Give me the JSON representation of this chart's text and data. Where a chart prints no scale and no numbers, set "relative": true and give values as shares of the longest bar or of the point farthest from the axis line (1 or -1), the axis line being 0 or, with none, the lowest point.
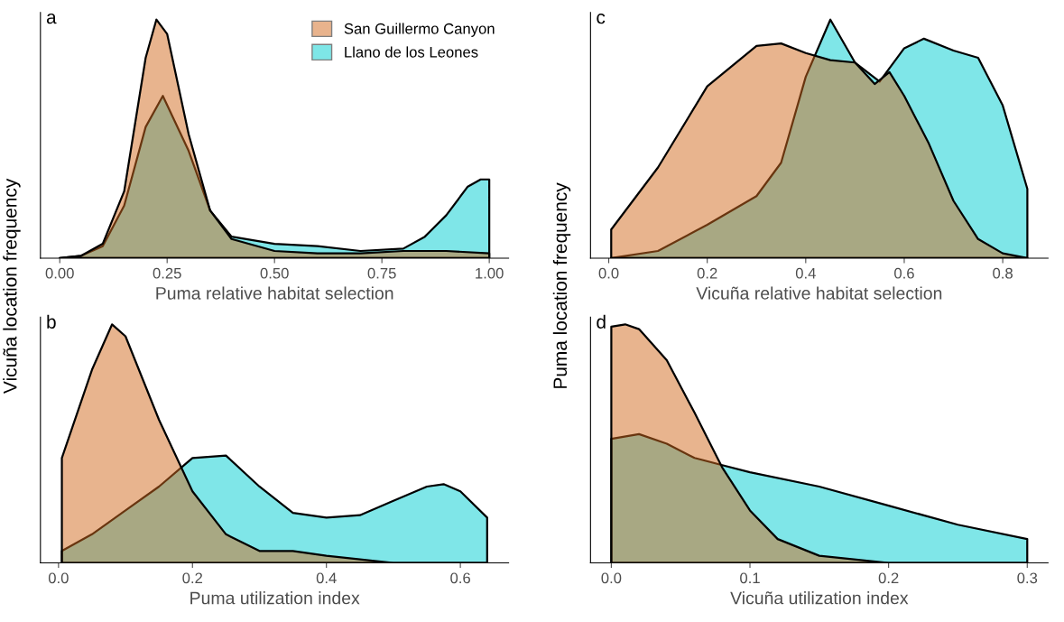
{
  "chart_data": [
    {
      "type": "area",
      "title": "a",
      "xlabel": "Puma relative habitat selection",
      "ylabel": "Vicuña location frequency",
      "relative": true,
      "legend": "top right",
      "grid": false,
      "xlim": [
        -0.045,
        1.045
      ],
      "xticks": [
        {
          "value": 0,
          "label": "0.00"
        },
        {
          "value": 0.25,
          "label": "0.25"
        },
        {
          "value": 0.5,
          "label": "0.50"
        },
        {
          "value": 0.75,
          "label": "0.75"
        },
        {
          "value": 1,
          "label": "1.00"
        }
      ],
      "series": [
        {
          "name": "San Guillermo Canyon",
          "color": "#d2691e",
          "x": [
            0,
            0.05,
            0.1,
            0.15,
            0.2,
            0.225,
            0.25,
            0.3,
            0.35,
            0.4,
            0.5,
            0.6,
            0.7,
            0.8,
            0.9,
            1.0
          ],
          "values": [
            0,
            0.01,
            0.06,
            0.28,
            0.84,
            1.0,
            0.94,
            0.52,
            0.2,
            0.08,
            0.03,
            0.02,
            0.02,
            0.03,
            0.03,
            0.02
          ]
        },
        {
          "name": "Llano de los Leones",
          "color": "#00ced1",
          "x": [
            0,
            0.05,
            0.1,
            0.15,
            0.2,
            0.24,
            0.3,
            0.35,
            0.4,
            0.5,
            0.6,
            0.7,
            0.8,
            0.85,
            0.9,
            0.95,
            0.98,
            1.0
          ],
          "values": [
            0,
            0.01,
            0.05,
            0.22,
            0.55,
            0.68,
            0.45,
            0.2,
            0.09,
            0.06,
            0.05,
            0.03,
            0.04,
            0.09,
            0.18,
            0.3,
            0.33,
            0.33
          ]
        }
      ]
    },
    {
      "type": "area",
      "title": "b",
      "xlabel": "Puma utilization index",
      "relative": true,
      "grid": false,
      "xlim": [
        -0.027,
        0.672
      ],
      "xticks": [
        {
          "value": 0,
          "label": "0.0"
        },
        0.2,
        0.4,
        0.6
      ],
      "series": [
        {
          "color": "#d2691e",
          "x": [
            0.005,
            0.05,
            0.08,
            0.1,
            0.15,
            0.2,
            0.25,
            0.3,
            0.35,
            0.4,
            0.5,
            0.64
          ],
          "values": [
            0.44,
            0.81,
            1.0,
            0.95,
            0.6,
            0.3,
            0.12,
            0.05,
            0.05,
            0.03,
            0.0,
            0
          ]
        },
        {
          "color": "#00ced1",
          "x": [
            0.005,
            0.05,
            0.1,
            0.15,
            0.2,
            0.25,
            0.3,
            0.35,
            0.4,
            0.45,
            0.5,
            0.55,
            0.575,
            0.6,
            0.64
          ],
          "values": [
            0.05,
            0.12,
            0.22,
            0.32,
            0.44,
            0.45,
            0.32,
            0.21,
            0.19,
            0.2,
            0.26,
            0.32,
            0.33,
            0.3,
            0.19
          ]
        }
      ]
    },
    {
      "type": "area",
      "title": "c",
      "xlabel": "Vicuña relative habitat selection",
      "ylabel": "Puma location frequency",
      "relative": true,
      "grid": false,
      "xlim": [
        -0.037,
        0.892
      ],
      "xticks": [
        {
          "value": 0,
          "label": "0.0"
        },
        0.2,
        0.4,
        0.6,
        0.8
      ],
      "series": [
        {
          "color": "#d2691e",
          "x": [
            0.005,
            0.1,
            0.2,
            0.3,
            0.35,
            0.4,
            0.45,
            0.5,
            0.54,
            0.57,
            0.6,
            0.65,
            0.7,
            0.75,
            0.8,
            0.85
          ],
          "values": [
            0.12,
            0.38,
            0.72,
            0.89,
            0.9,
            0.86,
            0.83,
            0.82,
            0.73,
            0.78,
            0.68,
            0.48,
            0.24,
            0.08,
            0.02,
            0.0
          ]
        },
        {
          "color": "#00ced1",
          "x": [
            0.005,
            0.1,
            0.2,
            0.3,
            0.35,
            0.4,
            0.45,
            0.5,
            0.55,
            0.6,
            0.64,
            0.7,
            0.75,
            0.8,
            0.85
          ],
          "values": [
            0,
            0.03,
            0.14,
            0.26,
            0.4,
            0.76,
            1.0,
            0.82,
            0.74,
            0.88,
            0.92,
            0.87,
            0.84,
            0.64,
            0.29
          ]
        }
      ]
    },
    {
      "type": "area",
      "title": "d",
      "xlabel": "Vicuña utilization index",
      "relative": true,
      "grid": false,
      "xlim": [
        -0.015,
        0.315
      ],
      "xticks": [
        {
          "value": 0,
          "label": "0.0"
        },
        0.1,
        0.2,
        0.3
      ],
      "series": [
        {
          "color": "#d2691e",
          "x": [
            0,
            0.01,
            0.02,
            0.04,
            0.06,
            0.08,
            0.1,
            0.12,
            0.15,
            0.2,
            0.3
          ],
          "values": [
            0.99,
            1.0,
            0.98,
            0.85,
            0.63,
            0.4,
            0.22,
            0.1,
            0.03,
            0.0,
            0
          ]
        },
        {
          "color": "#00ced1",
          "x": [
            0,
            0.02,
            0.04,
            0.06,
            0.08,
            0.1,
            0.15,
            0.2,
            0.25,
            0.3
          ],
          "values": [
            0.52,
            0.54,
            0.5,
            0.44,
            0.41,
            0.38,
            0.32,
            0.24,
            0.16,
            0.1
          ]
        }
      ]
    }
  ]
}
